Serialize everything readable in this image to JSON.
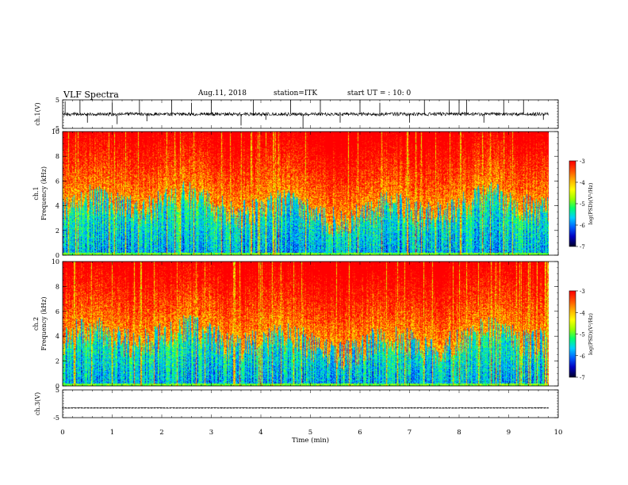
{
  "header": {
    "title": "VLF  Spectra",
    "date": "Aug.11, 2018",
    "station": "station=ITK",
    "start_ut": "start  UT  =    :  10:  0"
  },
  "colors": {
    "black": "#000000",
    "colormap": [
      "#000030",
      "#0000c0",
      "#0060ff",
      "#00d0ff",
      "#00ff70",
      "#9aff00",
      "#ffff00",
      "#ffb000",
      "#ff5000",
      "#ff0000"
    ]
  },
  "chart_data": [
    {
      "type": "line",
      "panel": "ch1_waveform",
      "ylabel": "ch.1(V)",
      "ylim": [
        -5,
        5
      ],
      "yticks": [
        "5",
        "-5"
      ],
      "xlim": [
        0,
        10
      ],
      "x_end": 9.8,
      "baseline": 0,
      "noise_amplitude": 0.6,
      "spikes": [
        {
          "x": 0.05,
          "y": 4.5
        },
        {
          "x": 0.35,
          "y": 5
        },
        {
          "x": 0.5,
          "y": -3
        },
        {
          "x": 1.0,
          "y": 4
        },
        {
          "x": 1.1,
          "y": -3.5
        },
        {
          "x": 1.55,
          "y": 5
        },
        {
          "x": 1.7,
          "y": -2.5
        },
        {
          "x": 2.2,
          "y": 5
        },
        {
          "x": 2.6,
          "y": 4
        },
        {
          "x": 3.0,
          "y": 5
        },
        {
          "x": 3.6,
          "y": -4
        },
        {
          "x": 3.85,
          "y": 5
        },
        {
          "x": 4.1,
          "y": -2
        },
        {
          "x": 4.6,
          "y": 5
        },
        {
          "x": 4.85,
          "y": -5
        },
        {
          "x": 5.2,
          "y": 5
        },
        {
          "x": 5.6,
          "y": -3
        },
        {
          "x": 6.0,
          "y": 5
        },
        {
          "x": 6.4,
          "y": 4
        },
        {
          "x": 7.0,
          "y": -3
        },
        {
          "x": 7.3,
          "y": 5
        },
        {
          "x": 7.8,
          "y": 4.5
        },
        {
          "x": 8.0,
          "y": 5
        },
        {
          "x": 8.15,
          "y": 5
        },
        {
          "x": 8.5,
          "y": -3
        },
        {
          "x": 8.9,
          "y": 5
        },
        {
          "x": 9.3,
          "y": 5
        },
        {
          "x": 9.7,
          "y": -2
        }
      ]
    },
    {
      "type": "heatmap",
      "panel": "ch1_spectrogram",
      "ylabel_line1": "ch.1",
      "ylabel_line2": "Frequency  (kHz)",
      "ylim": [
        0,
        10
      ],
      "yticks": [
        "0",
        "2",
        "4",
        "6",
        "8",
        "10"
      ],
      "xlim": [
        0,
        10
      ],
      "x_end": 9.8,
      "noise_floor_khz": 5.0,
      "colorbar": {
        "label": "log(PSD)(V²/Hz)",
        "range": [
          -7,
          -3
        ],
        "ticks": [
          "-3",
          "-4",
          "-5",
          "-6",
          "-7"
        ]
      }
    },
    {
      "type": "heatmap",
      "panel": "ch2_spectrogram",
      "ylabel_line1": "ch.2",
      "ylabel_line2": "Frequency  (kHz)",
      "ylim": [
        0,
        10
      ],
      "yticks": [
        "0",
        "2",
        "4",
        "6",
        "8",
        "10"
      ],
      "xlim": [
        0,
        10
      ],
      "x_end": 9.8,
      "noise_floor_khz": 4.8,
      "colorbar": {
        "label": "log(PSD)(V²/Hz)",
        "range": [
          -7,
          -3
        ],
        "ticks": [
          "-3",
          "-4",
          "-5",
          "-6",
          "-7"
        ]
      }
    },
    {
      "type": "line",
      "panel": "ch3_waveform",
      "ylabel": "ch.3(V)",
      "ylim": [
        -5,
        5
      ],
      "yticks": [
        "5",
        "-5"
      ],
      "xlim": [
        0,
        10
      ],
      "x_end": 9.8,
      "baseline": -1.5,
      "noise_amplitude": 0.1,
      "spikes": []
    }
  ],
  "x_axis": {
    "label": "Time  (min)",
    "ticks": [
      "0",
      "1",
      "2",
      "3",
      "4",
      "5",
      "6",
      "7",
      "8",
      "9",
      "10"
    ]
  }
}
